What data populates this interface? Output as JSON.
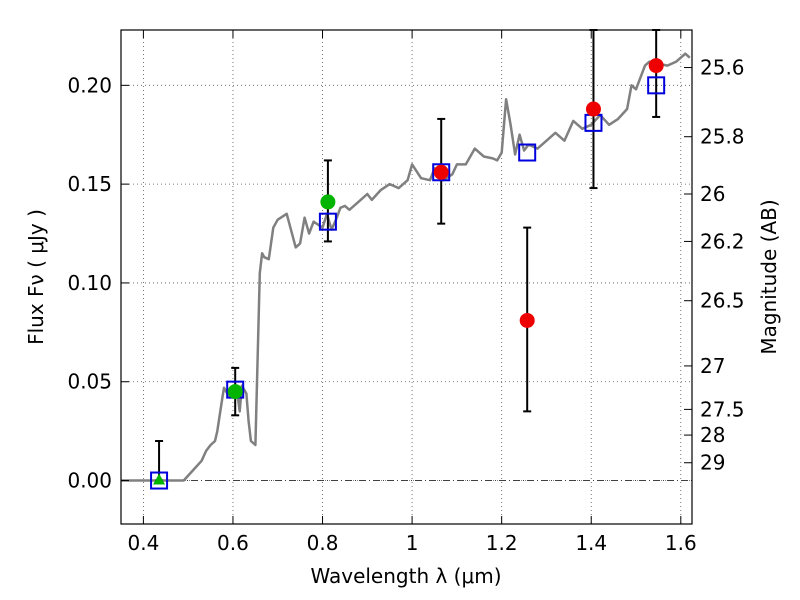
{
  "chart_data": {
    "type": "scatter",
    "xlabel": "Wavelength  λ (μm)",
    "ylabel": "Flux  Fν  ( μJy )",
    "y2label": "Magnitude (AB)",
    "xlim": [
      0.35,
      1.625
    ],
    "ylim": [
      -0.022,
      0.228
    ],
    "x_ticks": [
      0.4,
      0.6,
      0.8,
      1.0,
      1.2,
      1.4,
      1.6
    ],
    "x_tick_labels": [
      "0.4",
      "0.6",
      "0.8",
      "1",
      "1.2",
      "1.4",
      "1.6"
    ],
    "y_ticks": [
      0.0,
      0.05,
      0.1,
      0.15,
      0.2
    ],
    "y_tick_labels": [
      "0.00",
      "0.05",
      "0.10",
      "0.15",
      "0.20"
    ],
    "right_ticks": [
      {
        "flux": 0.209,
        "label": "25.6"
      },
      {
        "flux": 0.174,
        "label": "25.8"
      },
      {
        "flux": 0.145,
        "label": "26"
      },
      {
        "flux": 0.121,
        "label": "26.2"
      },
      {
        "flux": 0.091,
        "label": "26.5"
      },
      {
        "flux": 0.058,
        "label": "27"
      },
      {
        "flux": 0.036,
        "label": "27.5"
      },
      {
        "flux": 0.023,
        "label": "28"
      },
      {
        "flux": 0.009,
        "label": "29"
      }
    ],
    "grid": true,
    "colors": {
      "model": "#808080",
      "green": "#00b400",
      "red": "#ee0000",
      "square": "#0000dd",
      "errorbar": "#000000"
    },
    "model_spectrum": {
      "x": [
        0.35,
        0.4,
        0.45,
        0.49,
        0.51,
        0.53,
        0.54,
        0.55,
        0.56,
        0.565,
        0.575,
        0.58,
        0.59,
        0.6,
        0.61,
        0.615,
        0.62,
        0.63,
        0.635,
        0.64,
        0.65,
        0.66,
        0.665,
        0.67,
        0.68,
        0.69,
        0.7,
        0.72,
        0.74,
        0.75,
        0.76,
        0.77,
        0.78,
        0.8,
        0.81,
        0.82,
        0.83,
        0.84,
        0.85,
        0.86,
        0.88,
        0.9,
        0.91,
        0.93,
        0.95,
        0.97,
        0.99,
        1.0,
        1.02,
        1.04,
        1.05,
        1.07,
        1.09,
        1.1,
        1.12,
        1.14,
        1.16,
        1.18,
        1.19,
        1.2,
        1.21,
        1.22,
        1.23,
        1.24,
        1.25,
        1.26,
        1.28,
        1.3,
        1.32,
        1.34,
        1.36,
        1.38,
        1.4,
        1.42,
        1.44,
        1.46,
        1.48,
        1.49,
        1.5,
        1.52,
        1.53,
        1.55,
        1.57,
        1.59,
        1.61,
        1.62
      ],
      "y": [
        0.0,
        0.0,
        0.0,
        0.0,
        0.005,
        0.01,
        0.015,
        0.018,
        0.02,
        0.025,
        0.04,
        0.047,
        0.043,
        0.047,
        0.044,
        0.035,
        0.048,
        0.044,
        0.03,
        0.02,
        0.018,
        0.105,
        0.115,
        0.113,
        0.112,
        0.128,
        0.132,
        0.135,
        0.118,
        0.12,
        0.133,
        0.125,
        0.131,
        0.128,
        0.135,
        0.127,
        0.132,
        0.138,
        0.139,
        0.137,
        0.141,
        0.145,
        0.142,
        0.147,
        0.15,
        0.148,
        0.152,
        0.16,
        0.153,
        0.152,
        0.158,
        0.152,
        0.155,
        0.16,
        0.16,
        0.168,
        0.164,
        0.163,
        0.162,
        0.166,
        0.193,
        0.18,
        0.165,
        0.175,
        0.167,
        0.17,
        0.168,
        0.172,
        0.176,
        0.172,
        0.182,
        0.178,
        0.18,
        0.185,
        0.18,
        0.183,
        0.188,
        0.2,
        0.198,
        0.21,
        0.212,
        0.211,
        0.21,
        0.212,
        0.216,
        0.214
      ]
    },
    "model_points": {
      "x": [
        0.435,
        0.605,
        0.812,
        1.065,
        1.257,
        1.405,
        1.545
      ],
      "y": [
        0.0,
        0.046,
        0.131,
        0.156,
        0.166,
        0.181,
        0.2
      ]
    },
    "measurements": [
      {
        "x": 0.435,
        "y": 0.0,
        "lo": 0.0,
        "hi": 0.02,
        "marker": "triangle",
        "color": "green"
      },
      {
        "x": 0.605,
        "y": 0.045,
        "lo": 0.033,
        "hi": 0.057,
        "marker": "circle",
        "color": "green"
      },
      {
        "x": 0.812,
        "y": 0.141,
        "lo": 0.121,
        "hi": 0.162,
        "marker": "circle",
        "color": "green"
      },
      {
        "x": 1.065,
        "y": 0.156,
        "lo": 0.13,
        "hi": 0.183,
        "marker": "circle",
        "color": "red"
      },
      {
        "x": 1.257,
        "y": 0.081,
        "lo": 0.035,
        "hi": 0.128,
        "marker": "circle",
        "color": "red"
      },
      {
        "x": 1.405,
        "y": 0.188,
        "lo": 0.148,
        "hi": 0.228,
        "marker": "circle",
        "color": "red"
      },
      {
        "x": 1.545,
        "y": 0.21,
        "lo": 0.184,
        "hi": 0.228,
        "marker": "circle",
        "color": "red"
      }
    ]
  }
}
